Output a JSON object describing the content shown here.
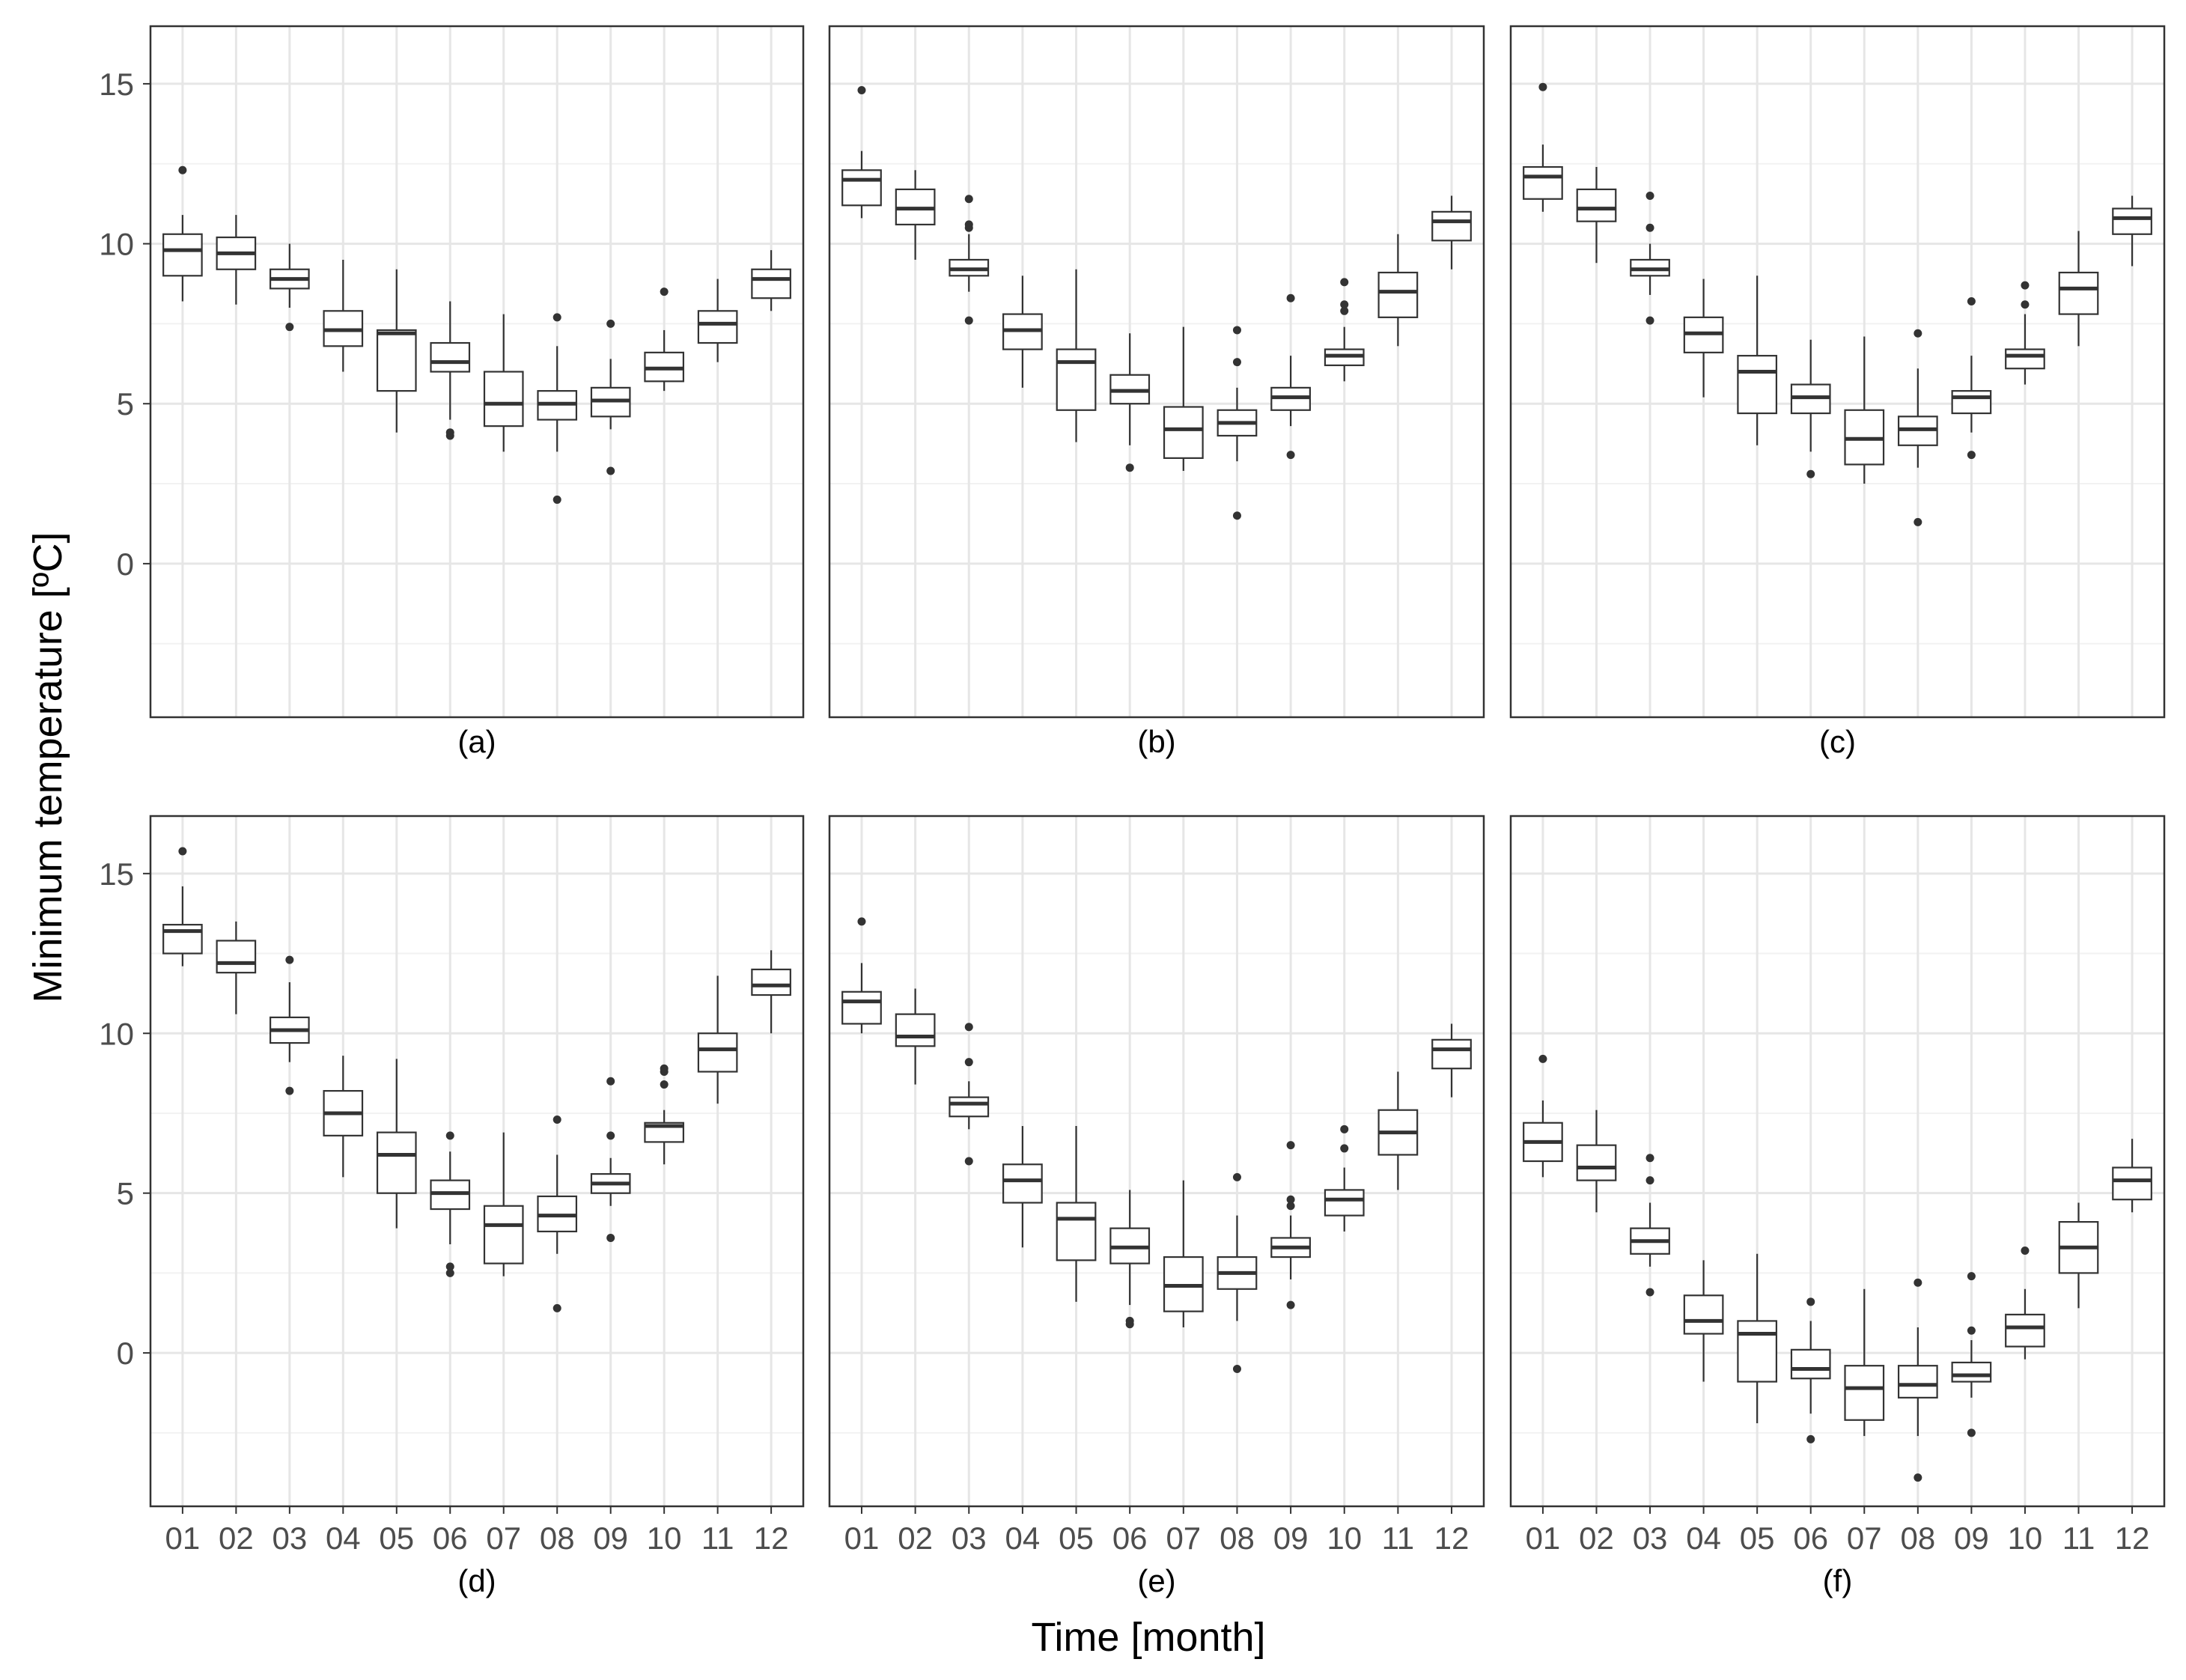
{
  "y_axis_title": "Minimum temperature [ºC]",
  "x_axis_title": "Time [month]",
  "colors": {
    "panel_border": "#333333",
    "grid_major": "#e6e6e6",
    "grid_minor": "#f2f2f2",
    "box_fill": "#ffffff",
    "box_stroke": "#333333",
    "outlier": "#333333",
    "tick_text": "#4d4d4d"
  },
  "chart_data": [
    {
      "type": "boxplot",
      "panel_label": "(a)",
      "categories": [
        "01",
        "02",
        "03",
        "04",
        "05",
        "06",
        "07",
        "08",
        "09",
        "10",
        "11",
        "12"
      ],
      "y_ticks": [
        "0",
        "5",
        "10",
        "15"
      ],
      "ylim": [
        -4.8,
        16.8
      ],
      "grid": true,
      "boxes": [
        {
          "min": 8.2,
          "q1": 9.0,
          "median": 9.8,
          "q3": 10.3,
          "max": 10.9,
          "outliers": [
            12.3
          ]
        },
        {
          "min": 8.1,
          "q1": 9.2,
          "median": 9.7,
          "q3": 10.2,
          "max": 10.9,
          "outliers": []
        },
        {
          "min": 8.0,
          "q1": 8.6,
          "median": 8.9,
          "q3": 9.2,
          "max": 10.0,
          "outliers": [
            7.4
          ]
        },
        {
          "min": 6.0,
          "q1": 6.8,
          "median": 7.3,
          "q3": 7.9,
          "max": 9.5,
          "outliers": []
        },
        {
          "min": 4.1,
          "q1": 5.4,
          "median": 7.2,
          "q3": 7.3,
          "max": 9.2,
          "outliers": []
        },
        {
          "min": 4.5,
          "q1": 6.0,
          "median": 6.3,
          "q3": 6.9,
          "max": 8.2,
          "outliers": [
            4.0,
            4.1
          ]
        },
        {
          "min": 3.5,
          "q1": 4.3,
          "median": 5.0,
          "q3": 6.0,
          "max": 7.8,
          "outliers": []
        },
        {
          "min": 3.5,
          "q1": 4.5,
          "median": 5.0,
          "q3": 5.4,
          "max": 6.8,
          "outliers": [
            7.7,
            2.0
          ]
        },
        {
          "min": 4.2,
          "q1": 4.6,
          "median": 5.1,
          "q3": 5.5,
          "max": 6.4,
          "outliers": [
            7.5,
            2.9
          ]
        },
        {
          "min": 5.4,
          "q1": 5.7,
          "median": 6.1,
          "q3": 6.6,
          "max": 7.3,
          "outliers": [
            8.5
          ]
        },
        {
          "min": 6.3,
          "q1": 6.9,
          "median": 7.5,
          "q3": 7.9,
          "max": 8.9,
          "outliers": []
        },
        {
          "min": 7.9,
          "q1": 8.3,
          "median": 8.9,
          "q3": 9.2,
          "max": 9.8,
          "outliers": []
        }
      ]
    },
    {
      "type": "boxplot",
      "panel_label": "(b)",
      "categories": [
        "01",
        "02",
        "03",
        "04",
        "05",
        "06",
        "07",
        "08",
        "09",
        "10",
        "11",
        "12"
      ],
      "y_ticks": [
        "0",
        "5",
        "10",
        "15"
      ],
      "ylim": [
        -4.8,
        16.8
      ],
      "grid": true,
      "boxes": [
        {
          "min": 10.8,
          "q1": 11.2,
          "median": 12.0,
          "q3": 12.3,
          "max": 12.9,
          "outliers": [
            14.8
          ]
        },
        {
          "min": 9.5,
          "q1": 10.6,
          "median": 11.1,
          "q3": 11.7,
          "max": 12.3,
          "outliers": []
        },
        {
          "min": 8.5,
          "q1": 9.0,
          "median": 9.2,
          "q3": 9.5,
          "max": 10.3,
          "outliers": [
            7.6,
            10.5,
            10.6,
            11.4
          ]
        },
        {
          "min": 5.5,
          "q1": 6.7,
          "median": 7.3,
          "q3": 7.8,
          "max": 9.0,
          "outliers": []
        },
        {
          "min": 3.8,
          "q1": 4.8,
          "median": 6.3,
          "q3": 6.7,
          "max": 9.2,
          "outliers": []
        },
        {
          "min": 3.7,
          "q1": 5.0,
          "median": 5.4,
          "q3": 5.9,
          "max": 7.2,
          "outliers": [
            3.0
          ]
        },
        {
          "min": 2.9,
          "q1": 3.3,
          "median": 4.2,
          "q3": 4.9,
          "max": 7.4,
          "outliers": []
        },
        {
          "min": 3.2,
          "q1": 4.0,
          "median": 4.4,
          "q3": 4.8,
          "max": 5.5,
          "outliers": [
            7.3,
            6.3,
            1.5
          ]
        },
        {
          "min": 4.3,
          "q1": 4.8,
          "median": 5.2,
          "q3": 5.5,
          "max": 6.5,
          "outliers": [
            8.3,
            3.4
          ]
        },
        {
          "min": 5.7,
          "q1": 6.2,
          "median": 6.5,
          "q3": 6.7,
          "max": 7.4,
          "outliers": [
            7.9,
            8.1,
            8.8
          ]
        },
        {
          "min": 6.8,
          "q1": 7.7,
          "median": 8.5,
          "q3": 9.1,
          "max": 10.3,
          "outliers": []
        },
        {
          "min": 9.2,
          "q1": 10.1,
          "median": 10.7,
          "q3": 11.0,
          "max": 11.5,
          "outliers": []
        }
      ]
    },
    {
      "type": "boxplot",
      "panel_label": "(c)",
      "categories": [
        "01",
        "02",
        "03",
        "04",
        "05",
        "06",
        "07",
        "08",
        "09",
        "10",
        "11",
        "12"
      ],
      "y_ticks": [
        "0",
        "5",
        "10",
        "15"
      ],
      "ylim": [
        -4.8,
        16.8
      ],
      "grid": true,
      "boxes": [
        {
          "min": 11.0,
          "q1": 11.4,
          "median": 12.1,
          "q3": 12.4,
          "max": 13.1,
          "outliers": [
            14.9
          ]
        },
        {
          "min": 9.4,
          "q1": 10.7,
          "median": 11.1,
          "q3": 11.7,
          "max": 12.4,
          "outliers": []
        },
        {
          "min": 8.4,
          "q1": 9.0,
          "median": 9.2,
          "q3": 9.5,
          "max": 10.0,
          "outliers": [
            7.6,
            10.5,
            11.5
          ]
        },
        {
          "min": 5.2,
          "q1": 6.6,
          "median": 7.2,
          "q3": 7.7,
          "max": 8.9,
          "outliers": []
        },
        {
          "min": 3.7,
          "q1": 4.7,
          "median": 6.0,
          "q3": 6.5,
          "max": 9.0,
          "outliers": []
        },
        {
          "min": 3.5,
          "q1": 4.7,
          "median": 5.2,
          "q3": 5.6,
          "max": 7.0,
          "outliers": [
            2.8
          ]
        },
        {
          "min": 2.5,
          "q1": 3.1,
          "median": 3.9,
          "q3": 4.8,
          "max": 7.1,
          "outliers": []
        },
        {
          "min": 3.0,
          "q1": 3.7,
          "median": 4.2,
          "q3": 4.6,
          "max": 6.1,
          "outliers": [
            7.2,
            1.3
          ]
        },
        {
          "min": 4.1,
          "q1": 4.7,
          "median": 5.2,
          "q3": 5.4,
          "max": 6.5,
          "outliers": [
            8.2,
            3.4
          ]
        },
        {
          "min": 5.6,
          "q1": 6.1,
          "median": 6.5,
          "q3": 6.7,
          "max": 7.8,
          "outliers": [
            8.1,
            8.7
          ]
        },
        {
          "min": 6.8,
          "q1": 7.8,
          "median": 8.6,
          "q3": 9.1,
          "max": 10.4,
          "outliers": []
        },
        {
          "min": 9.3,
          "q1": 10.3,
          "median": 10.8,
          "q3": 11.1,
          "max": 11.5,
          "outliers": []
        }
      ]
    },
    {
      "type": "boxplot",
      "panel_label": "(d)",
      "categories": [
        "01",
        "02",
        "03",
        "04",
        "05",
        "06",
        "07",
        "08",
        "09",
        "10",
        "11",
        "12"
      ],
      "y_ticks": [
        "0",
        "5",
        "10",
        "15"
      ],
      "ylim": [
        -4.8,
        16.8
      ],
      "grid": true,
      "boxes": [
        {
          "min": 12.1,
          "q1": 12.5,
          "median": 13.2,
          "q3": 13.4,
          "max": 14.6,
          "outliers": [
            15.7
          ]
        },
        {
          "min": 10.6,
          "q1": 11.9,
          "median": 12.2,
          "q3": 12.9,
          "max": 13.5,
          "outliers": []
        },
        {
          "min": 9.1,
          "q1": 9.7,
          "median": 10.1,
          "q3": 10.5,
          "max": 11.6,
          "outliers": [
            12.3,
            8.2
          ]
        },
        {
          "min": 5.5,
          "q1": 6.8,
          "median": 7.5,
          "q3": 8.2,
          "max": 9.3,
          "outliers": []
        },
        {
          "min": 3.9,
          "q1": 5.0,
          "median": 6.2,
          "q3": 6.9,
          "max": 9.2,
          "outliers": []
        },
        {
          "min": 3.4,
          "q1": 4.5,
          "median": 5.0,
          "q3": 5.4,
          "max": 6.3,
          "outliers": [
            6.8,
            2.7,
            2.5
          ]
        },
        {
          "min": 2.4,
          "q1": 2.8,
          "median": 4.0,
          "q3": 4.6,
          "max": 6.9,
          "outliers": []
        },
        {
          "min": 3.1,
          "q1": 3.8,
          "median": 4.3,
          "q3": 4.9,
          "max": 6.2,
          "outliers": [
            7.3,
            1.4
          ]
        },
        {
          "min": 4.6,
          "q1": 5.0,
          "median": 5.3,
          "q3": 5.6,
          "max": 6.1,
          "outliers": [
            6.8,
            8.5,
            3.6
          ]
        },
        {
          "min": 5.9,
          "q1": 6.6,
          "median": 7.1,
          "q3": 7.2,
          "max": 7.6,
          "outliers": [
            8.4,
            8.8,
            8.9
          ]
        },
        {
          "min": 7.8,
          "q1": 8.8,
          "median": 9.5,
          "q3": 10.0,
          "max": 11.8,
          "outliers": []
        },
        {
          "min": 10.0,
          "q1": 11.2,
          "median": 11.5,
          "q3": 12.0,
          "max": 12.6,
          "outliers": []
        }
      ]
    },
    {
      "type": "boxplot",
      "panel_label": "(e)",
      "categories": [
        "01",
        "02",
        "03",
        "04",
        "05",
        "06",
        "07",
        "08",
        "09",
        "10",
        "11",
        "12"
      ],
      "y_ticks": [
        "0",
        "5",
        "10",
        "15"
      ],
      "ylim": [
        -4.8,
        16.8
      ],
      "grid": true,
      "boxes": [
        {
          "min": 10.0,
          "q1": 10.3,
          "median": 11.0,
          "q3": 11.3,
          "max": 12.2,
          "outliers": [
            13.5
          ]
        },
        {
          "min": 8.4,
          "q1": 9.6,
          "median": 9.9,
          "q3": 10.6,
          "max": 11.4,
          "outliers": []
        },
        {
          "min": 7.0,
          "q1": 7.4,
          "median": 7.8,
          "q3": 8.0,
          "max": 8.5,
          "outliers": [
            10.2,
            9.1,
            6.0
          ]
        },
        {
          "min": 3.3,
          "q1": 4.7,
          "median": 5.4,
          "q3": 5.9,
          "max": 7.1,
          "outliers": []
        },
        {
          "min": 1.6,
          "q1": 2.9,
          "median": 4.2,
          "q3": 4.7,
          "max": 7.1,
          "outliers": []
        },
        {
          "min": 1.5,
          "q1": 2.8,
          "median": 3.3,
          "q3": 3.9,
          "max": 5.1,
          "outliers": [
            1.0,
            0.9
          ]
        },
        {
          "min": 0.8,
          "q1": 1.3,
          "median": 2.1,
          "q3": 3.0,
          "max": 5.4,
          "outliers": []
        },
        {
          "min": 1.0,
          "q1": 2.0,
          "median": 2.5,
          "q3": 3.0,
          "max": 4.3,
          "outliers": [
            5.5,
            -0.5
          ]
        },
        {
          "min": 2.3,
          "q1": 3.0,
          "median": 3.3,
          "q3": 3.6,
          "max": 4.3,
          "outliers": [
            4.6,
            4.8,
            6.5,
            1.5
          ]
        },
        {
          "min": 3.8,
          "q1": 4.3,
          "median": 4.8,
          "q3": 5.1,
          "max": 5.8,
          "outliers": [
            6.4,
            7.0
          ]
        },
        {
          "min": 5.1,
          "q1": 6.2,
          "median": 6.9,
          "q3": 7.6,
          "max": 8.8,
          "outliers": []
        },
        {
          "min": 8.0,
          "q1": 8.9,
          "median": 9.5,
          "q3": 9.8,
          "max": 10.3,
          "outliers": []
        }
      ]
    },
    {
      "type": "boxplot",
      "panel_label": "(f)",
      "categories": [
        "01",
        "02",
        "03",
        "04",
        "05",
        "06",
        "07",
        "08",
        "09",
        "10",
        "11",
        "12"
      ],
      "y_ticks": [
        "0",
        "5",
        "10",
        "15"
      ],
      "ylim": [
        -4.8,
        16.8
      ],
      "grid": true,
      "boxes": [
        {
          "min": 5.5,
          "q1": 6.0,
          "median": 6.6,
          "q3": 7.2,
          "max": 7.9,
          "outliers": [
            9.2
          ]
        },
        {
          "min": 4.4,
          "q1": 5.4,
          "median": 5.8,
          "q3": 6.5,
          "max": 7.6,
          "outliers": []
        },
        {
          "min": 2.7,
          "q1": 3.1,
          "median": 3.5,
          "q3": 3.9,
          "max": 4.7,
          "outliers": [
            6.1,
            5.4,
            1.9
          ]
        },
        {
          "min": -0.9,
          "q1": 0.6,
          "median": 1.0,
          "q3": 1.8,
          "max": 2.9,
          "outliers": []
        },
        {
          "min": -2.2,
          "q1": -0.9,
          "median": 0.6,
          "q3": 1.0,
          "max": 3.1,
          "outliers": []
        },
        {
          "min": -1.9,
          "q1": -0.8,
          "median": -0.5,
          "q3": 0.1,
          "max": 1.0,
          "outliers": [
            1.6,
            -2.7
          ]
        },
        {
          "min": -2.6,
          "q1": -2.1,
          "median": -1.1,
          "q3": -0.4,
          "max": 2.0,
          "outliers": []
        },
        {
          "min": -2.6,
          "q1": -1.4,
          "median": -1.0,
          "q3": -0.4,
          "max": 0.8,
          "outliers": [
            2.2,
            -3.9
          ]
        },
        {
          "min": -1.4,
          "q1": -0.9,
          "median": -0.7,
          "q3": -0.3,
          "max": 0.4,
          "outliers": [
            0.7,
            2.4,
            -2.5
          ]
        },
        {
          "min": -0.2,
          "q1": 0.2,
          "median": 0.8,
          "q3": 1.2,
          "max": 2.0,
          "outliers": [
            3.2
          ]
        },
        {
          "min": 1.4,
          "q1": 2.5,
          "median": 3.3,
          "q3": 4.1,
          "max": 4.7,
          "outliers": []
        },
        {
          "min": 4.4,
          "q1": 4.8,
          "median": 5.4,
          "q3": 5.8,
          "max": 6.7,
          "outliers": []
        }
      ]
    }
  ]
}
